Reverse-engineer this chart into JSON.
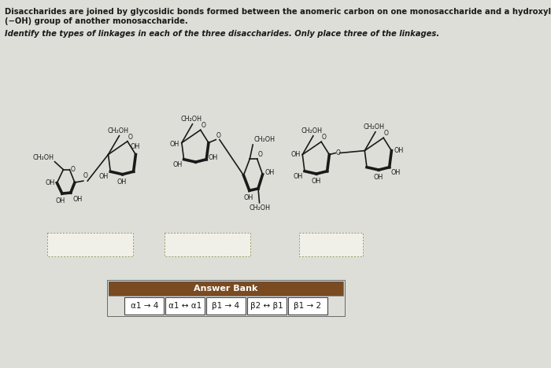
{
  "bg_color": "#deded8",
  "title_text1": "Disaccharides are joined by glycosidic bonds formed between the anomeric carbon on one monosaccharide and a hydroxyl",
  "title_text2": "(−OH) group of another monosaccharide.",
  "instruction": "Identify the types of linkages in each of the three disaccharides. Only place three of the linkages.",
  "answer_bank_label": "Answer Bank",
  "answer_bank_bg": "#7a4a20",
  "answer_bank_text_color": "#ffffff",
  "answer_items": [
    "α1 → 4",
    "α1 ↔ α1",
    "β1 → 4",
    "β2 ↔ β1",
    "β1 → 2"
  ],
  "answer_box_bg": "#f5f5ee",
  "answer_box_border": "#444444",
  "sc": "#1a1a1a",
  "tc": "#1a1a1a",
  "drop_box_border": "#999966",
  "drop_box_bg": "#f0f0e8"
}
